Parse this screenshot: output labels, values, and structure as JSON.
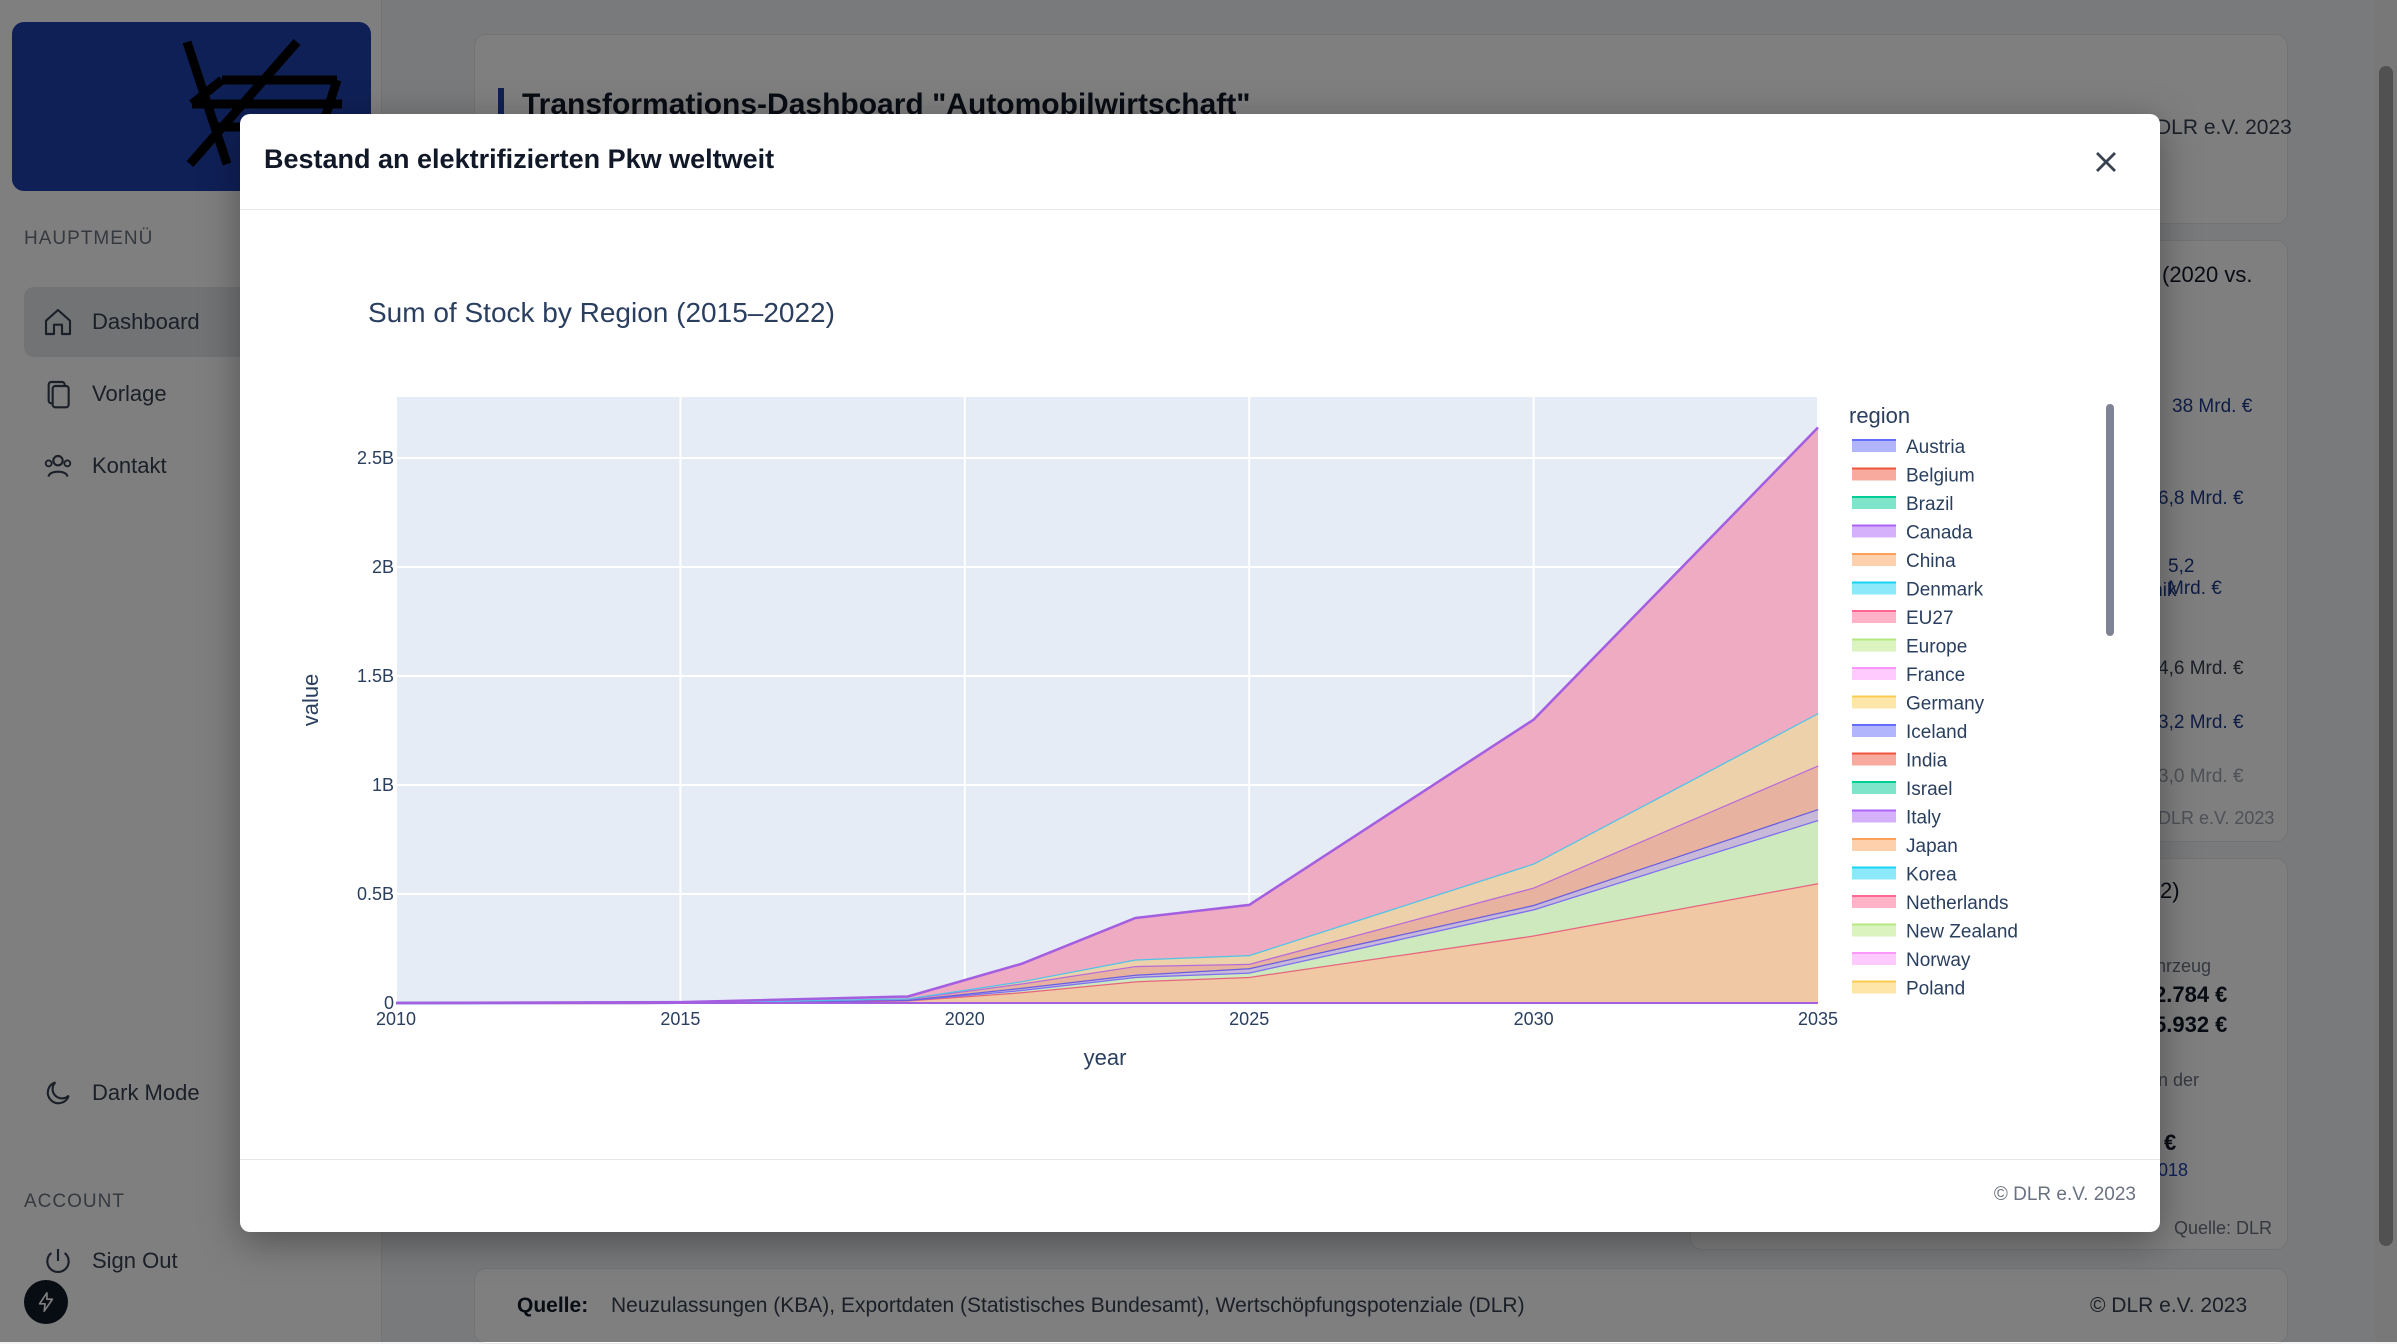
{
  "sidebar": {
    "section_main": "HAUPTMENÜ",
    "items": [
      {
        "label": "Dashboard",
        "active": true
      },
      {
        "label": "Vorlage",
        "active": false
      },
      {
        "label": "Kontakt",
        "active": false
      }
    ],
    "dark_mode_label": "Dark Mode",
    "section_account": "ACCOUNT",
    "sign_out_label": "Sign Out"
  },
  "background": {
    "dashboard_title": "Transformations-Dashboard \"Automobilwirtschaft\"",
    "header_copyright": "DLR e.V. 2023",
    "card_heading_fragment": "(2020 vs.",
    "values": [
      "38 Mrd. €",
      "6,8 Mrd. €",
      "5,2 Mrd. €",
      "4,6 Mrd. €",
      "3,2 Mrd. €",
      "3,0 Mrd. €"
    ],
    "value_label_fragment": "tronik",
    "card_copyright": "DLR e.V. 2023",
    "card2_heading_fragment": "2)",
    "vehicle_label": "hrzeug",
    "price1": "2.784 €",
    "price2": "5.932 €",
    "der_label": "n der",
    "euro_sign": "€",
    "year_link": "018",
    "quelle_right": "Quelle: DLR",
    "footer_quelle_label": "Quelle:",
    "footer_quelle_text": "Neuzulassungen (KBA), Exportdaten (Statistisches Bundesamt), Wertschöpfungspotenziale (DLR)",
    "footer_copyright": "© DLR e.V. 2023"
  },
  "modal": {
    "title": "Bestand an elektrifizierten Pkw weltweit",
    "footer_copyright": "© DLR e.V. 2023"
  },
  "colors": {
    "accent": "#1e40af",
    "plot_bg": "#e5ecf6"
  },
  "chart_data": {
    "type": "area",
    "title": "Sum of Stock by Region (2015–2022)",
    "xlabel": "year",
    "ylabel": "value",
    "xlim": [
      2010,
      2035
    ],
    "ylim": [
      0,
      2.78
    ],
    "y_unit": "billions",
    "x_ticks": [
      2010,
      2015,
      2020,
      2025,
      2030,
      2035
    ],
    "y_ticks": [
      0,
      0.5,
      1,
      1.5,
      2,
      2.5
    ],
    "y_tick_labels": [
      "0",
      "0.5B",
      "1B",
      "1.5B",
      "2B",
      "2.5B"
    ],
    "grid": true,
    "legend_title": "region",
    "legend_position": "right",
    "x": [
      2010,
      2015,
      2019,
      2021,
      2023,
      2025,
      2030,
      2035
    ],
    "layers": [
      {
        "values": [
          0,
          0.001,
          0.012,
          0.05,
          0.1,
          0.12,
          0.31,
          0.55
        ],
        "color": "#f0c8a4",
        "line": "#e8647e"
      },
      {
        "values": [
          0,
          0.001,
          0.014,
          0.06,
          0.12,
          0.14,
          0.43,
          0.84
        ],
        "color": "#cde9bd",
        "line": "#7d6ef0"
      },
      {
        "values": [
          0,
          0.001,
          0.015,
          0.07,
          0.13,
          0.16,
          0.45,
          0.89
        ],
        "color": "#c9b9d9",
        "line": "#6a5ee0"
      },
      {
        "values": [
          0,
          0.002,
          0.02,
          0.09,
          0.17,
          0.18,
          0.53,
          1.09
        ],
        "color": "#e7b29f",
        "line": "#b86bd8"
      },
      {
        "values": [
          0,
          0.002,
          0.022,
          0.1,
          0.2,
          0.22,
          0.64,
          1.33
        ],
        "color": "#ecd1ab",
        "line": "#4fc3e8"
      },
      {
        "values": [
          0,
          0.004,
          0.03,
          0.18,
          0.39,
          0.45,
          1.3,
          2.64
        ],
        "color": "#eeabc2",
        "line": "#a45ee0"
      }
    ],
    "series": [
      {
        "name": "Austria",
        "color": "#636efa"
      },
      {
        "name": "Belgium",
        "color": "#ef553b"
      },
      {
        "name": "Brazil",
        "color": "#00cc96"
      },
      {
        "name": "Canada",
        "color": "#ab63fa"
      },
      {
        "name": "China",
        "color": "#ffa15a"
      },
      {
        "name": "Denmark",
        "color": "#19d3f3"
      },
      {
        "name": "EU27",
        "color": "#ff6692"
      },
      {
        "name": "Europe",
        "color": "#b6e880"
      },
      {
        "name": "France",
        "color": "#ff97ff"
      },
      {
        "name": "Germany",
        "color": "#fecb52"
      },
      {
        "name": "Iceland",
        "color": "#636efa"
      },
      {
        "name": "India",
        "color": "#ef553b"
      },
      {
        "name": "Israel",
        "color": "#00cc96"
      },
      {
        "name": "Italy",
        "color": "#ab63fa"
      },
      {
        "name": "Japan",
        "color": "#ffa15a"
      },
      {
        "name": "Korea",
        "color": "#19d3f3"
      },
      {
        "name": "Netherlands",
        "color": "#ff6692"
      },
      {
        "name": "New Zealand",
        "color": "#b6e880"
      },
      {
        "name": "Norway",
        "color": "#ff97ff"
      },
      {
        "name": "Poland",
        "color": "#fecb52"
      }
    ]
  }
}
